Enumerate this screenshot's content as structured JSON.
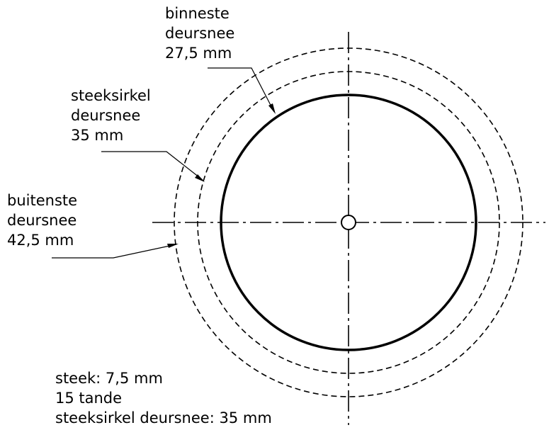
{
  "labels": {
    "inner": [
      "binneste",
      "deursnee",
      "27,5 mm"
    ],
    "pitch": [
      "steeksirkel",
      "deursnee",
      "35 mm"
    ],
    "outer": [
      "buitenste",
      "deursnee",
      "42,5 mm"
    ]
  },
  "notes": {
    "pitch_value": "steek: 7,5 mm",
    "teeth": "15 tande",
    "pitch_circle": "steeksirkel deursnee: 35 mm"
  },
  "colors": {
    "stroke": "#000000",
    "background": "#ffffff"
  }
}
